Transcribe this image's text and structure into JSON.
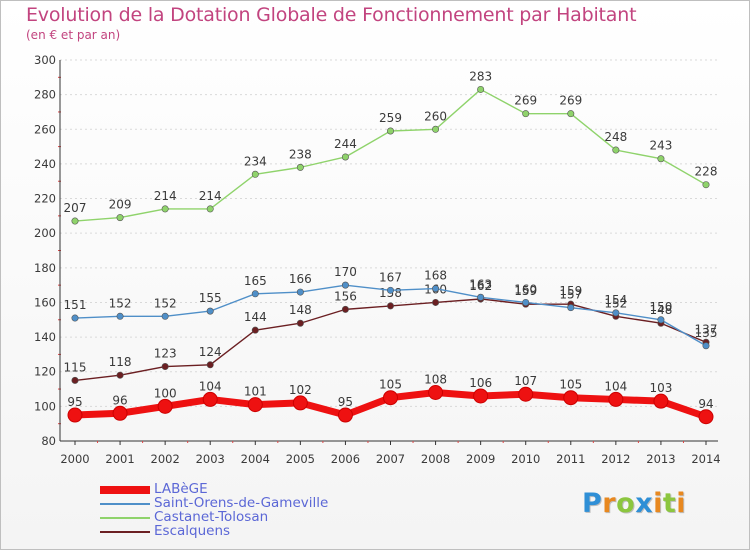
{
  "title": "Evolution de la Dotation Globale de Fonctionnement par Habitant",
  "subtitle": "(en € et par an)",
  "colors": {
    "title": "#c2447f",
    "axis_text": "#3a3a3a",
    "grid": "#d9d9d9",
    "legend_text": "#5b67d6"
  },
  "chart_data": {
    "type": "line",
    "title": "Evolution de la Dotation Globale de Fonctionnement par Habitant",
    "subtitle": "(en € et par an)",
    "xlabel": "",
    "ylabel": "",
    "x": [
      "2000",
      "2001",
      "2002",
      "2003",
      "2004",
      "2005",
      "2006",
      "2007",
      "2008",
      "2009",
      "2010",
      "2011",
      "2012",
      "2013",
      "2014"
    ],
    "ylim": [
      80,
      300
    ],
    "yticks": [
      80,
      100,
      120,
      140,
      160,
      180,
      200,
      220,
      240,
      260,
      280,
      300
    ],
    "grid": "horizontal",
    "legend_position": "bottom-left",
    "series": [
      {
        "name": "LABèGE",
        "color": "#ee1111",
        "values": [
          95,
          96,
          100,
          104,
          101,
          102,
          95,
          105,
          108,
          106,
          107,
          105,
          104,
          103,
          94
        ]
      },
      {
        "name": "Saint-Orens-de-Gameville",
        "color": "#4f8fc8",
        "values": [
          151,
          152,
          152,
          155,
          165,
          166,
          170,
          167,
          168,
          163,
          160,
          157,
          154,
          150,
          135
        ]
      },
      {
        "name": "Castanet-Tolosan",
        "color": "#8fd36b",
        "values": [
          207,
          209,
          214,
          214,
          234,
          238,
          244,
          259,
          260,
          283,
          269,
          269,
          248,
          243,
          228
        ]
      },
      {
        "name": "Escalquens",
        "color": "#6b1f22",
        "values": [
          115,
          118,
          123,
          124,
          144,
          148,
          156,
          158,
          160,
          162,
          159,
          159,
          152,
          148,
          137
        ]
      }
    ]
  },
  "logo": {
    "letters": [
      "P",
      "r",
      "o",
      "x",
      "i",
      "t",
      "i"
    ],
    "colors": [
      "#2f8fd6",
      "#e8881f",
      "#8cc63f",
      "#2f8fd6",
      "#e8881f",
      "#8cc63f",
      "#e8881f"
    ]
  }
}
